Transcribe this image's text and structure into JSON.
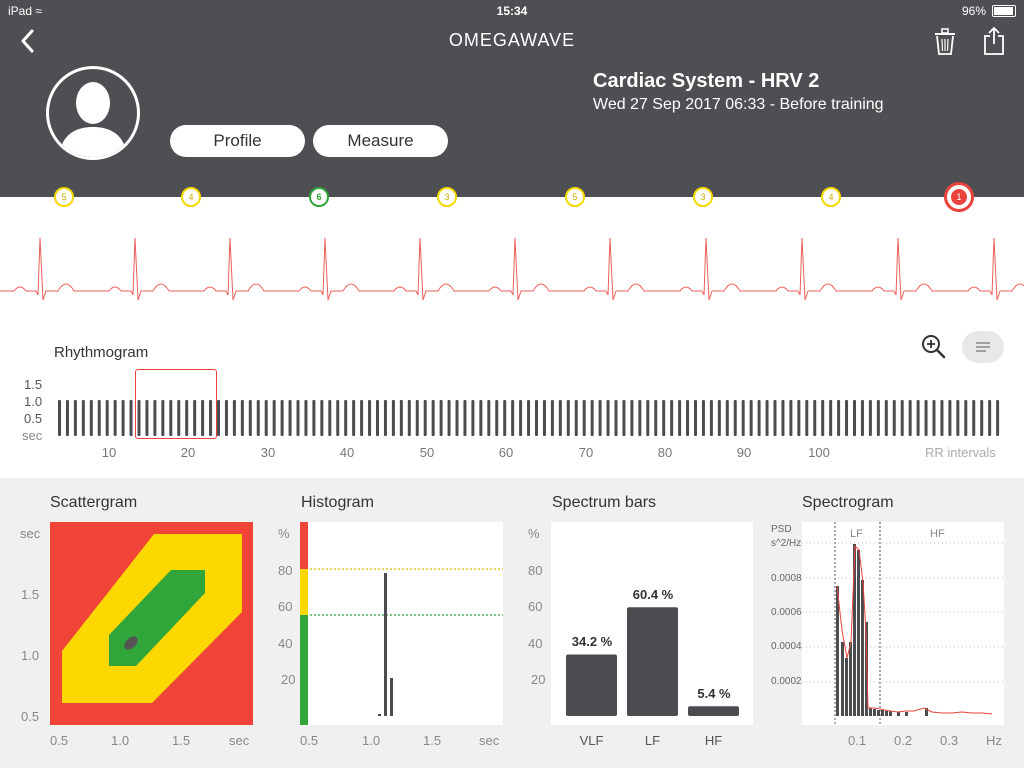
{
  "status_bar": {
    "carrier": "iPad",
    "time": "15:34",
    "battery": "96%"
  },
  "header": {
    "brand": "OMEGAWAVE",
    "title": "Cardiac System - HRV 2",
    "subtitle": "Wed 27 Sep 2017 06:33 - Before training",
    "profile_button": "Profile",
    "measure_button": "Measure"
  },
  "markers": [
    {
      "value": "5",
      "status": "yellow"
    },
    {
      "value": "4",
      "status": "yellow"
    },
    {
      "value": "6",
      "status": "green"
    },
    {
      "value": "3",
      "status": "yellow"
    },
    {
      "value": "5",
      "status": "yellow"
    },
    {
      "value": "3",
      "status": "yellow"
    },
    {
      "value": "4",
      "status": "yellow"
    },
    {
      "value": "1",
      "status": "red",
      "selected": true
    }
  ],
  "colors": {
    "red": "#e8433c",
    "yellow": "#f5d800",
    "green": "#2fa53a",
    "header_bg": "#4d4f52",
    "bar": "#4a4c4f"
  },
  "rhythmogram": {
    "title": "Rhythmogram",
    "y_ticks": [
      "1.5",
      "1.0",
      "0.5",
      "sec"
    ],
    "x_ticks": [
      "10",
      "20",
      "30",
      "40",
      "50",
      "60",
      "70",
      "80",
      "90",
      "100"
    ],
    "x_unit": "RR intervals",
    "selection_range": [
      14,
      23
    ]
  },
  "scattergram": {
    "title": "Scattergram",
    "y_ticks": [
      "sec",
      "1.5",
      "1.0",
      "0.5"
    ],
    "x_ticks": [
      "0.5",
      "1.0",
      "1.5",
      "sec"
    ]
  },
  "histogram": {
    "title": "Histogram",
    "y_ticks": [
      "%",
      "80",
      "60",
      "40",
      "20"
    ],
    "x_ticks": [
      "0.5",
      "1.0",
      "1.5",
      "sec"
    ]
  },
  "spectrum_bars": {
    "title": "Spectrum bars",
    "y_ticks": [
      "%",
      "80",
      "60",
      "40",
      "20"
    ],
    "bars": [
      {
        "label": "VLF",
        "value_label": "34.2 %",
        "value": 34.2
      },
      {
        "label": "LF",
        "value_label": "60.4 %",
        "value": 60.4
      },
      {
        "label": "HF",
        "value_label": "5.4 %",
        "value": 5.4
      }
    ]
  },
  "spectrogram": {
    "title": "Spectrogram",
    "y_label_1": "PSD",
    "y_label_2": "s^2/Hz",
    "y_ticks": [
      "0.0008",
      "0.0006",
      "0.0004",
      "0.0002"
    ],
    "x_ticks": [
      "0.1",
      "0.2",
      "0.3",
      "Hz"
    ],
    "band_lf": "LF",
    "band_hf": "HF"
  }
}
